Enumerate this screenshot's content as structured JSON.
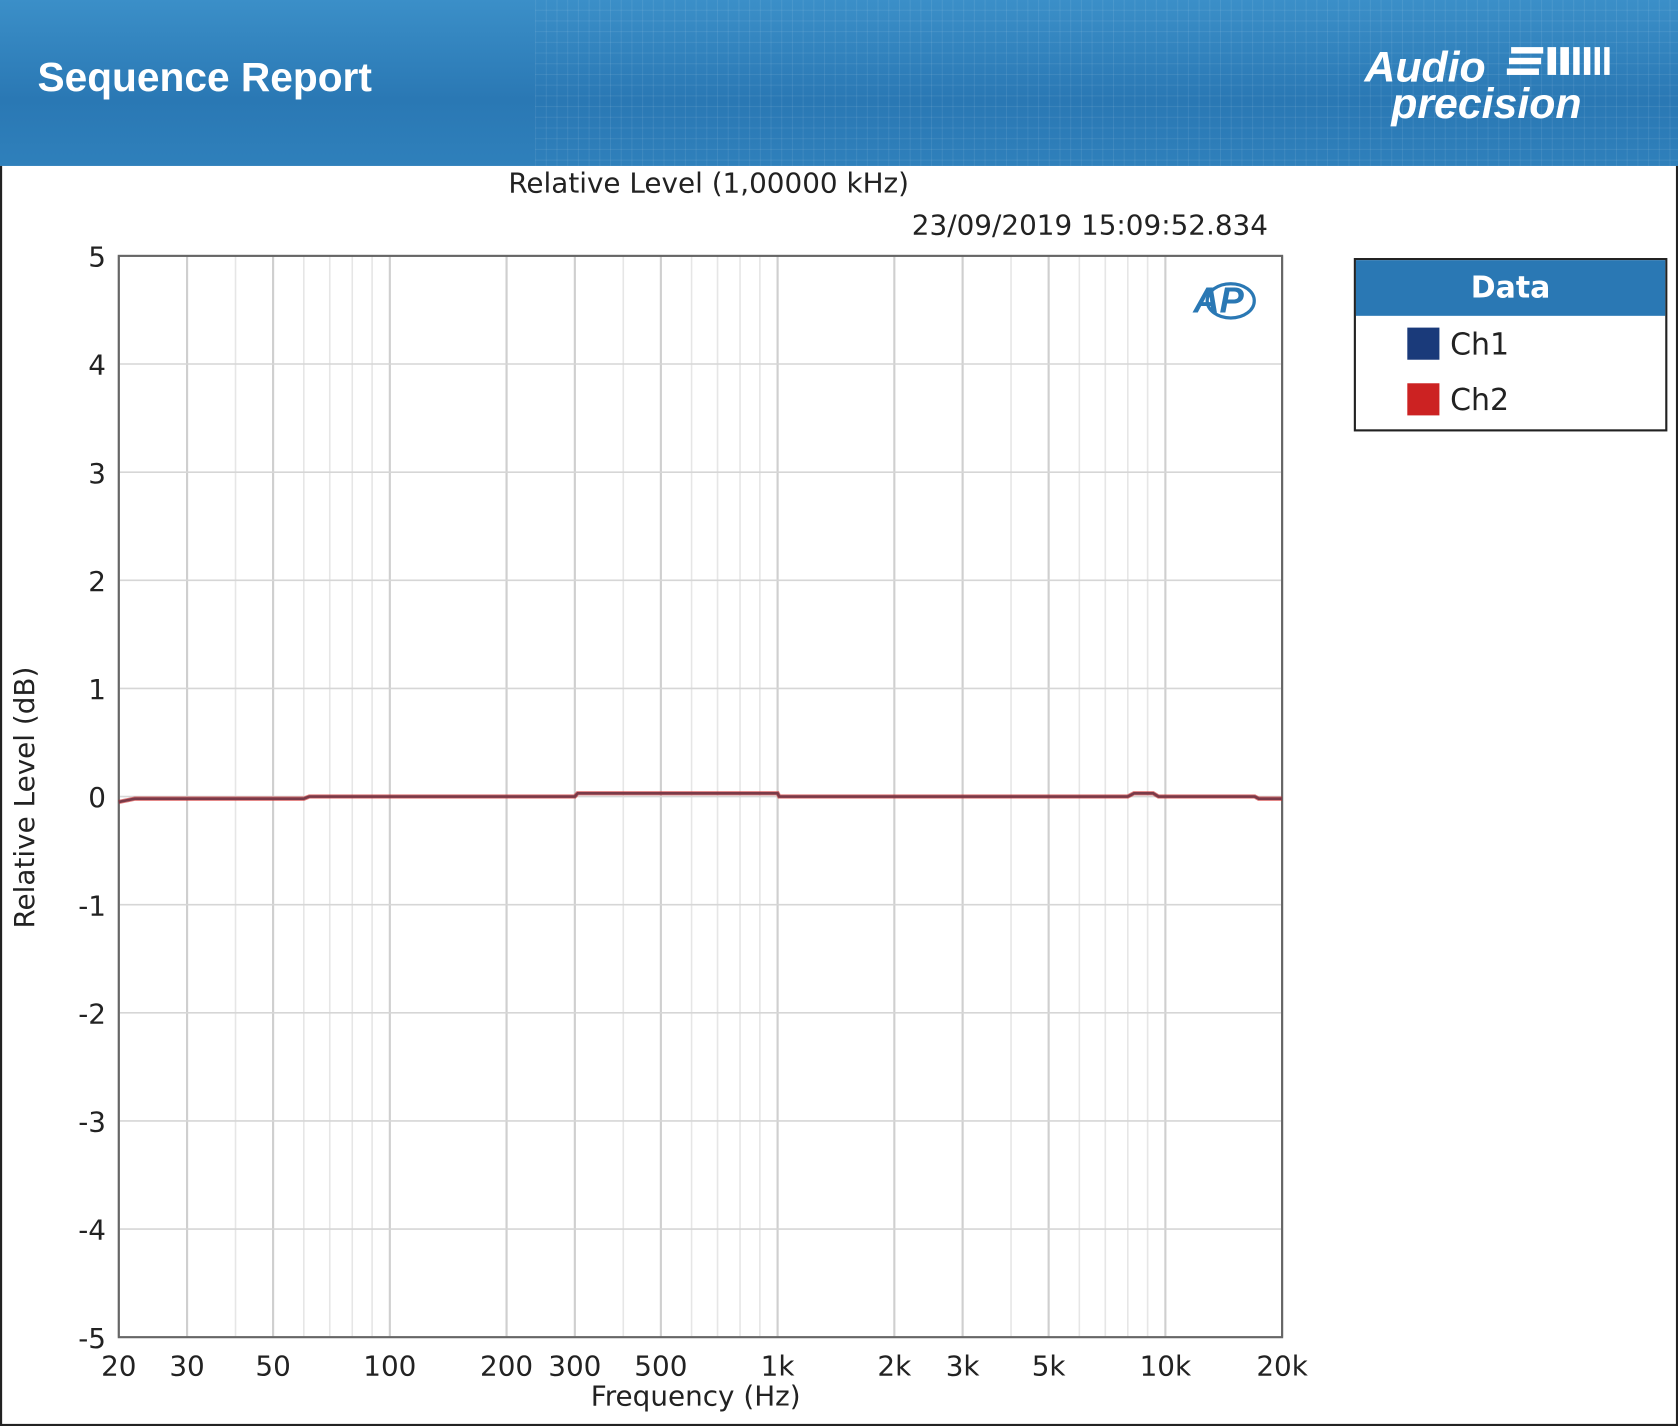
{
  "header": {
    "title": "Sequence Report",
    "logo_text": "Audio precision"
  },
  "chart_data": {
    "type": "line",
    "title": "Relative Level (1,00000 kHz)",
    "timestamp": "23/09/2019 15:09:52.834",
    "xlabel": "Frequency (Hz)",
    "ylabel": "Relative Level (dB)",
    "xscale": "log",
    "xlim": [
      20,
      20000
    ],
    "ylim": [
      -5,
      5
    ],
    "grid": true,
    "legend_placement": "right",
    "legend_title": "Data",
    "xticks": [
      20,
      30,
      50,
      100,
      200,
      300,
      500,
      1000,
      2000,
      3000,
      5000,
      10000,
      20000
    ],
    "xtick_labels": [
      "20",
      "30",
      "50",
      "100",
      "200",
      "300",
      "500",
      "1k",
      "2k",
      "3k",
      "5k",
      "10k",
      "20k"
    ],
    "yticks": [
      5,
      4,
      3,
      2,
      1,
      0,
      -1,
      -2,
      -3,
      -4,
      -5
    ],
    "ytick_labels": [
      "5",
      "4",
      "3",
      "2",
      "1",
      "0",
      "-1",
      "-2",
      "-3",
      "-4",
      "-5"
    ],
    "series": [
      {
        "name": "Ch1",
        "color": "#1a3a7a",
        "x": [
          20,
          22,
          60,
          62,
          300,
          305,
          1000,
          1010,
          8000,
          8300,
          9300,
          9600,
          17000,
          17400,
          20000
        ],
        "y": [
          -0.05,
          -0.02,
          -0.02,
          0.0,
          0.0,
          0.03,
          0.03,
          0.0,
          0.0,
          0.03,
          0.03,
          0.0,
          0.0,
          -0.02,
          -0.02
        ]
      },
      {
        "name": "Ch2",
        "color": "#cc2222",
        "x": [
          20,
          22,
          60,
          62,
          300,
          305,
          1000,
          1010,
          8000,
          8300,
          9300,
          9600,
          17000,
          17400,
          20000
        ],
        "y": [
          -0.05,
          -0.02,
          -0.02,
          0.0,
          0.0,
          0.03,
          0.03,
          0.0,
          0.0,
          0.03,
          0.03,
          0.0,
          0.0,
          -0.02,
          -0.02
        ]
      }
    ]
  }
}
